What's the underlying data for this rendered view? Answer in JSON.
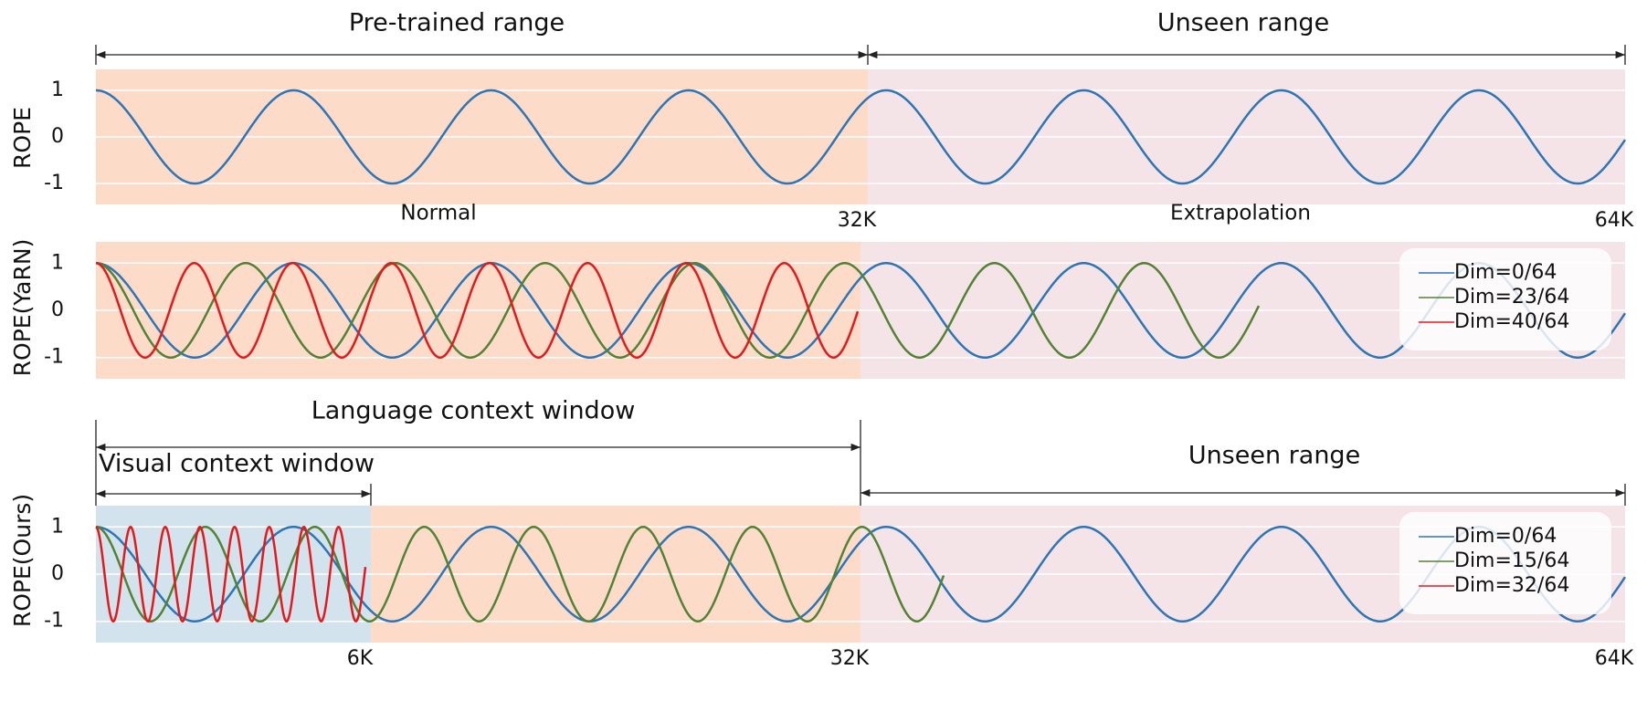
{
  "chart_data": [
    {
      "type": "line",
      "y_label": "ROPE",
      "xlim": [
        0,
        64
      ],
      "ylim": [
        -1.45,
        1.45
      ],
      "yticks": [
        -1,
        0,
        1
      ],
      "grid": true,
      "xticks": [
        {
          "value": 32,
          "label": "32K"
        },
        {
          "value": 64,
          "label": "64K"
        }
      ],
      "regions": [
        {
          "to": 32,
          "color": "#fcdcc8"
        },
        {
          "to": 64,
          "color": "#f4e4e7"
        }
      ],
      "legend": false,
      "series": [
        {
          "color": "#2e75b6",
          "cycles": 7.74,
          "end": 64
        }
      ]
    },
    {
      "type": "line",
      "y_label": "ROPE(YaRN)",
      "xlim": [
        0,
        64
      ],
      "ylim": [
        -1.45,
        1.45
      ],
      "yticks": [
        -1,
        0,
        1
      ],
      "grid": true,
      "xticks": [],
      "regions": [
        {
          "to": 32,
          "color": "#fcdcc8"
        },
        {
          "to": 64,
          "color": "#f4e4e7"
        }
      ],
      "legend": true,
      "series": [
        {
          "name": "Dim=0/64",
          "color": "#2e75b6",
          "cycles": 7.74,
          "end": 64
        },
        {
          "name": "Dim=23/64",
          "color": "#548235",
          "cycles": 7.77,
          "end": 48.7
        },
        {
          "name": "Dim=40/64",
          "color": "#e31a1c",
          "cycles": 7.75,
          "end": 31.9
        }
      ]
    },
    {
      "type": "line",
      "y_label": "ROPE(Ours)",
      "xlim": [
        0,
        64
      ],
      "ylim": [
        -1.45,
        1.45
      ],
      "yticks": [
        -1,
        0,
        1
      ],
      "grid": true,
      "xticks": [
        {
          "value": 6,
          "label": "6K"
        },
        {
          "value": 32,
          "label": "32K"
        },
        {
          "value": 64,
          "label": "64K"
        }
      ],
      "regions": [
        {
          "to": 6,
          "color": "#d3e3ee"
        },
        {
          "to": 32,
          "color": "#fcdcc8"
        },
        {
          "to": 64,
          "color": "#f4e4e7"
        }
      ],
      "legend": true,
      "series": [
        {
          "name": "Dim=0/64",
          "color": "#2e75b6",
          "cycles": 7.74,
          "end": 64
        },
        {
          "name": "Dim=15/64",
          "color": "#548235",
          "cycles": 7.75,
          "end": 35.5
        },
        {
          "name": "Dim=32/64",
          "color": "#e31a1c",
          "cycles": 7.8,
          "end": 5.9
        }
      ]
    }
  ],
  "annotations": [
    "Pre-trained range",
    "Unseen range",
    "Normal",
    "Extrapolation",
    "Language context window",
    "Visual context window",
    "Unseen range"
  ]
}
